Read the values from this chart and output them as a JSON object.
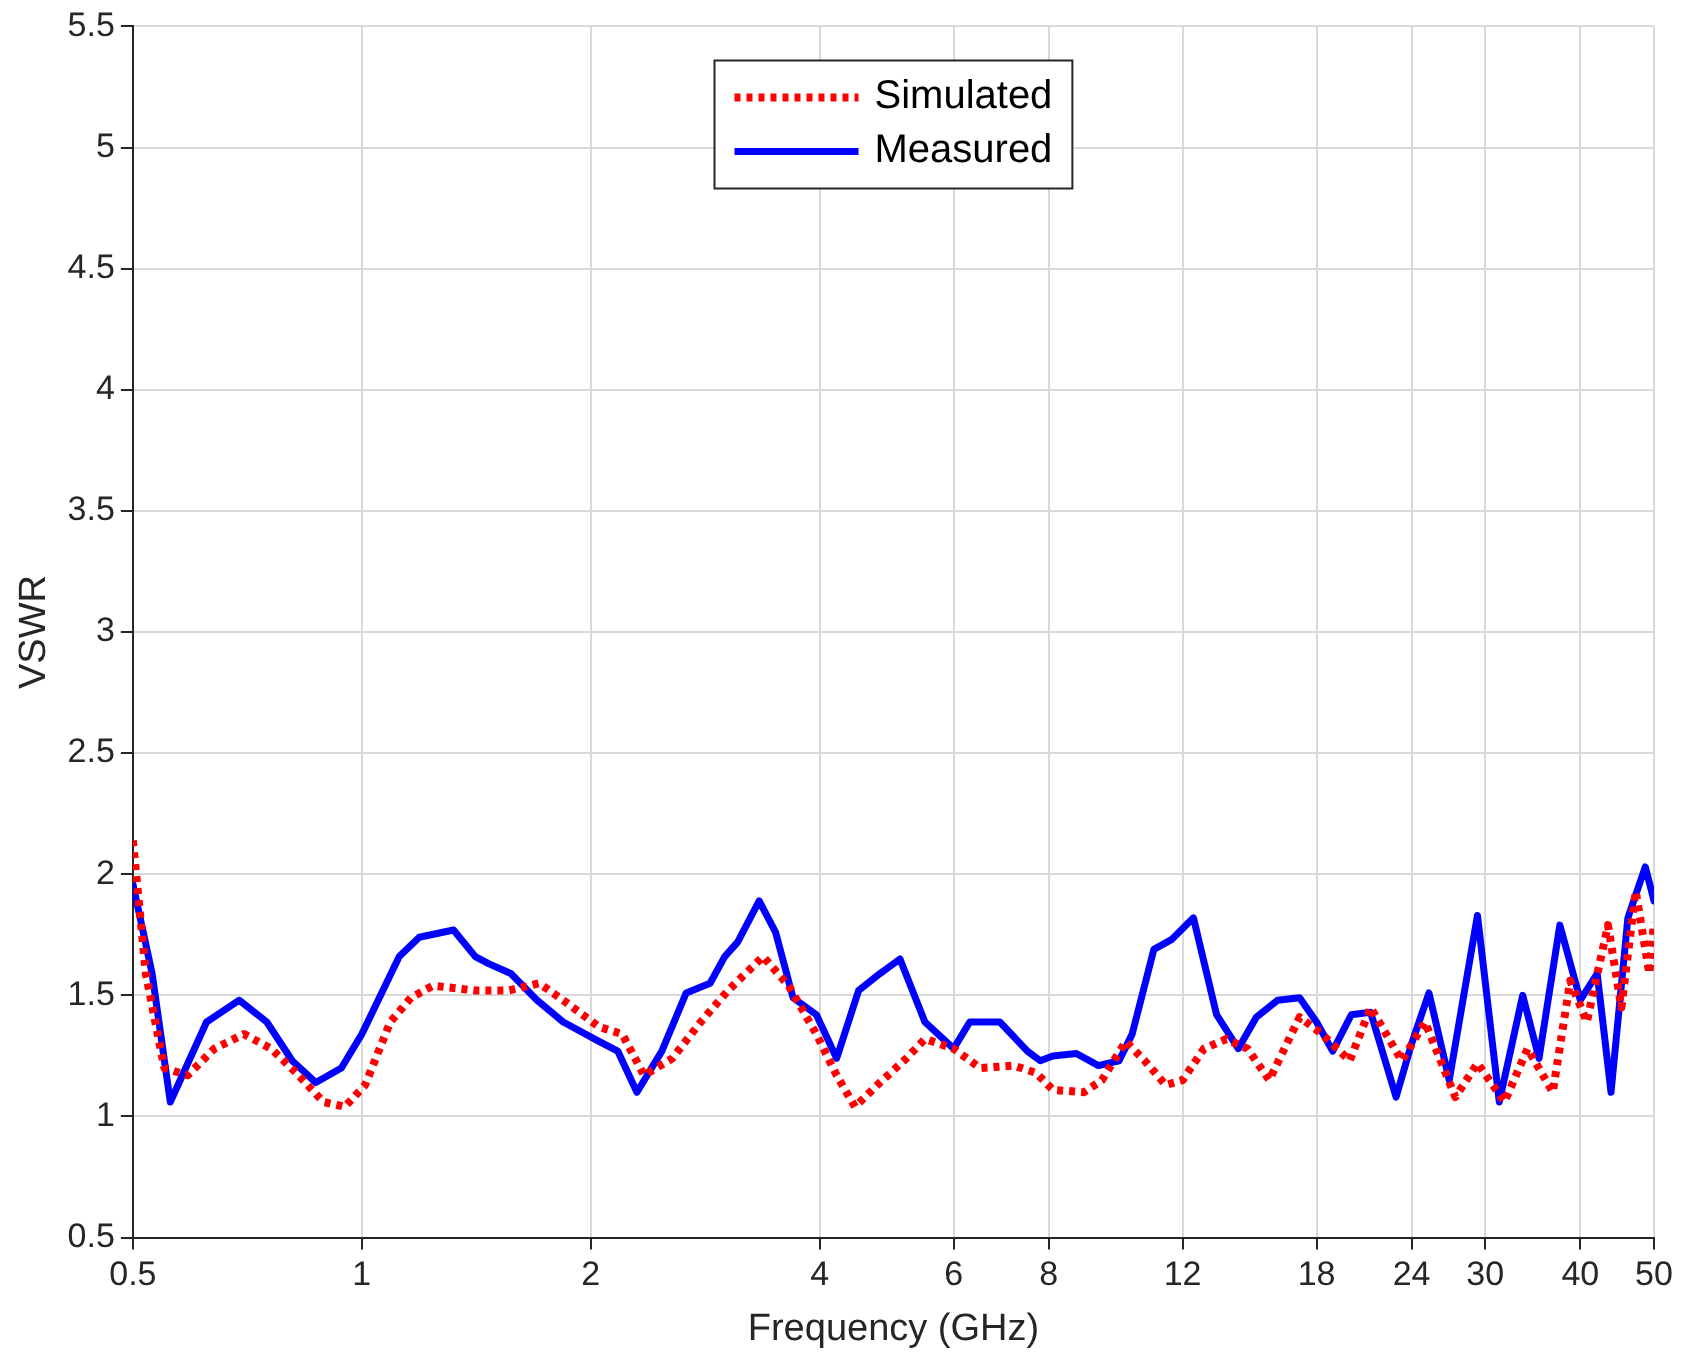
{
  "chart_data": {
    "type": "line",
    "xlabel": "Frequency (GHz)",
    "ylabel": "VSWR",
    "log": "x",
    "grid": true,
    "legend": "top",
    "marker": "none",
    "xlim": [
      0.5,
      50
    ],
    "xticks": [
      0.5,
      1,
      2,
      4,
      6,
      8,
      12,
      18,
      24,
      30,
      40,
      50
    ],
    "ylim": [
      0.5,
      5.5
    ],
    "yticks": [
      0.5,
      1,
      1.5,
      2,
      2.5,
      3,
      3.5,
      4,
      4.5,
      5,
      5.5
    ],
    "series": [
      {
        "name": "Simulated",
        "color": "#ff0000",
        "line_style": "dotted",
        "x": [
          0.5,
          0.52,
          0.55,
          0.59,
          0.64,
          0.7,
          0.76,
          0.82,
          0.89,
          0.95,
          1.01,
          1.09,
          1.16,
          1.24,
          1.41,
          1.56,
          1.71,
          1.84,
          2.05,
          2.2,
          2.35,
          2.56,
          2.79,
          3.03,
          3.37,
          3.64,
          3.96,
          4.21,
          4.45,
          4.8,
          5.2,
          5.5,
          6,
          6.5,
          7.2,
          7.7,
          8.1,
          8.9,
          9.4,
          10.1,
          10.7,
          11.4,
          12,
          12.8,
          13.7,
          14.6,
          15.6,
          17.1,
          18.3,
          19.9,
          21.2,
          23.3,
          25,
          27.4,
          29.3,
          31.8,
          34.1,
          36.8,
          38.8,
          40.8,
          43.5,
          45.3,
          47.3,
          49.3,
          50
        ],
        "values": [
          2.14,
          1.59,
          1.2,
          1.17,
          1.28,
          1.34,
          1.28,
          1.18,
          1.06,
          1.04,
          1.13,
          1.39,
          1.49,
          1.54,
          1.52,
          1.52,
          1.55,
          1.48,
          1.37,
          1.34,
          1.17,
          1.24,
          1.39,
          1.52,
          1.66,
          1.54,
          1.34,
          1.17,
          1.04,
          1.14,
          1.24,
          1.32,
          1.28,
          1.2,
          1.21,
          1.18,
          1.11,
          1.1,
          1.15,
          1.31,
          1.23,
          1.13,
          1.15,
          1.28,
          1.32,
          1.28,
          1.15,
          1.41,
          1.34,
          1.23,
          1.45,
          1.23,
          1.39,
          1.08,
          1.22,
          1.06,
          1.28,
          1.1,
          1.56,
          1.39,
          1.79,
          1.45,
          1.93,
          1.59,
          1.8
        ]
      },
      {
        "name": "Measured",
        "color": "#0000ff",
        "line_style": "solid",
        "x": [
          0.5,
          0.53,
          0.56,
          0.625,
          0.69,
          0.75,
          0.81,
          0.87,
          0.94,
          1,
          1.12,
          1.19,
          1.32,
          1.41,
          1.47,
          1.57,
          1.7,
          1.84,
          2.05,
          2.17,
          2.3,
          2.48,
          2.67,
          2.87,
          3,
          3.12,
          3.33,
          3.5,
          3.69,
          3.96,
          4.21,
          4.5,
          4.8,
          5.1,
          5.5,
          6,
          6.3,
          6.9,
          7.5,
          7.8,
          8.1,
          8.7,
          9.3,
          9.9,
          10.3,
          11,
          11.6,
          12.4,
          13.3,
          14.2,
          15,
          16,
          17.1,
          18,
          18.9,
          20,
          21.2,
          22.9,
          24,
          25.3,
          26.9,
          29.3,
          31.3,
          33.6,
          35.3,
          37.6,
          40,
          42.1,
          43.9,
          46.2,
          48.7,
          50
        ],
        "values": [
          1.96,
          1.59,
          1.06,
          1.39,
          1.48,
          1.39,
          1.23,
          1.14,
          1.2,
          1.34,
          1.66,
          1.74,
          1.77,
          1.66,
          1.63,
          1.59,
          1.48,
          1.39,
          1.31,
          1.27,
          1.1,
          1.27,
          1.51,
          1.55,
          1.66,
          1.72,
          1.89,
          1.76,
          1.49,
          1.42,
          1.24,
          1.52,
          1.59,
          1.65,
          1.39,
          1.28,
          1.39,
          1.39,
          1.27,
          1.23,
          1.25,
          1.26,
          1.21,
          1.23,
          1.34,
          1.69,
          1.73,
          1.82,
          1.42,
          1.28,
          1.41,
          1.48,
          1.49,
          1.39,
          1.27,
          1.42,
          1.43,
          1.08,
          1.3,
          1.51,
          1.15,
          1.83,
          1.06,
          1.5,
          1.24,
          1.79,
          1.48,
          1.59,
          1.1,
          1.82,
          2.03,
          1.89
        ]
      }
    ]
  }
}
